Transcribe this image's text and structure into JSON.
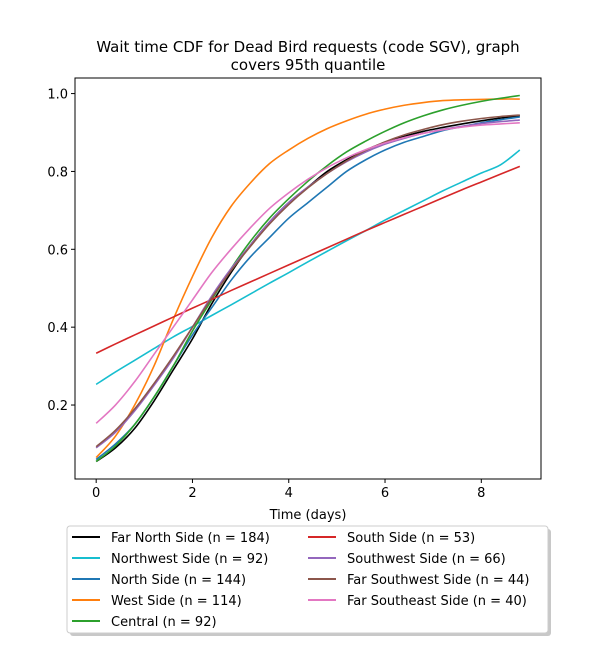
{
  "chart_data": {
    "type": "line",
    "title_lines": [
      "Wait time CDF for Dead Bird  requests (code SGV), graph",
      "covers 95th quantile"
    ],
    "xlabel": "Time (days)",
    "ylabel": "",
    "xlim": [
      -0.44,
      9.24
    ],
    "ylim": [
      0.01,
      1.04
    ],
    "xticks": [
      0,
      2,
      4,
      6,
      8
    ],
    "xtick_labels": [
      "0",
      "2",
      "4",
      "6",
      "8"
    ],
    "yticks": [
      0.2,
      0.4,
      0.6,
      0.8,
      1.0
    ],
    "ytick_labels": [
      "0.2",
      "0.4",
      "0.6",
      "0.8",
      "1.0"
    ],
    "grid": false,
    "legend_position": "below",
    "x": [
      0,
      0.4,
      0.8,
      1.2,
      1.6,
      2.0,
      2.4,
      2.8,
      3.2,
      3.6,
      4.0,
      4.4,
      4.8,
      5.2,
      5.6,
      6.0,
      6.4,
      6.8,
      7.2,
      7.6,
      8.0,
      8.4,
      8.8
    ],
    "series": [
      {
        "name": "Far North Side (n = 184)",
        "color": "#000000",
        "values": [
          0.055,
          0.09,
          0.14,
          0.21,
          0.29,
          0.37,
          0.46,
          0.54,
          0.61,
          0.67,
          0.72,
          0.76,
          0.8,
          0.83,
          0.855,
          0.875,
          0.89,
          0.903,
          0.913,
          0.922,
          0.93,
          0.937,
          0.943
        ]
      },
      {
        "name": "Northwest Side (n = 92)",
        "color": "#17becf",
        "values": [
          0.253,
          0.285,
          0.315,
          0.345,
          0.375,
          0.402,
          0.43,
          0.457,
          0.485,
          0.513,
          0.54,
          0.568,
          0.595,
          0.622,
          0.648,
          0.675,
          0.7,
          0.725,
          0.75,
          0.773,
          0.796,
          0.817,
          0.855
        ]
      },
      {
        "name": "North Side (n = 144)",
        "color": "#1f77b4",
        "values": [
          0.06,
          0.1,
          0.15,
          0.22,
          0.3,
          0.38,
          0.45,
          0.52,
          0.58,
          0.63,
          0.68,
          0.72,
          0.76,
          0.8,
          0.83,
          0.855,
          0.875,
          0.89,
          0.905,
          0.915,
          0.925,
          0.933,
          0.94
        ]
      },
      {
        "name": "West Side (n = 114)",
        "color": "#ff7f0e",
        "values": [
          0.065,
          0.12,
          0.2,
          0.3,
          0.42,
          0.53,
          0.63,
          0.71,
          0.77,
          0.82,
          0.855,
          0.885,
          0.91,
          0.93,
          0.947,
          0.96,
          0.97,
          0.977,
          0.982,
          0.984,
          0.985,
          0.986,
          0.986
        ]
      },
      {
        "name": "Central (n = 92)",
        "color": "#2ca02c",
        "values": [
          0.055,
          0.095,
          0.15,
          0.22,
          0.3,
          0.39,
          0.47,
          0.55,
          0.62,
          0.68,
          0.73,
          0.775,
          0.815,
          0.85,
          0.878,
          0.903,
          0.925,
          0.943,
          0.958,
          0.97,
          0.98,
          0.988,
          0.995
        ]
      },
      {
        "name": "South Side (n = 53)",
        "color": "#d62728",
        "values": [
          0.333,
          0.357,
          0.38,
          0.403,
          0.426,
          0.449,
          0.471,
          0.494,
          0.516,
          0.538,
          0.56,
          0.582,
          0.604,
          0.626,
          0.648,
          0.669,
          0.69,
          0.711,
          0.732,
          0.753,
          0.773,
          0.793,
          0.813
        ]
      },
      {
        "name": "Southwest Side (n = 66)",
        "color": "#9467bd",
        "values": [
          0.09,
          0.13,
          0.185,
          0.25,
          0.32,
          0.4,
          0.48,
          0.55,
          0.61,
          0.67,
          0.72,
          0.76,
          0.795,
          0.825,
          0.85,
          0.87,
          0.885,
          0.898,
          0.908,
          0.916,
          0.923,
          0.928,
          0.932
        ]
      },
      {
        "name": "Far Southwest Side (n = 44)",
        "color": "#8c564b",
        "values": [
          0.093,
          0.135,
          0.19,
          0.255,
          0.325,
          0.4,
          0.475,
          0.545,
          0.607,
          0.665,
          0.715,
          0.758,
          0.795,
          0.827,
          0.854,
          0.876,
          0.894,
          0.908,
          0.92,
          0.929,
          0.936,
          0.941,
          0.945
        ]
      },
      {
        "name": "Far Southeast Side (n = 40)",
        "color": "#e377c2",
        "values": [
          0.153,
          0.2,
          0.26,
          0.33,
          0.4,
          0.47,
          0.54,
          0.6,
          0.655,
          0.705,
          0.745,
          0.78,
          0.81,
          0.835,
          0.856,
          0.873,
          0.887,
          0.898,
          0.907,
          0.914,
          0.919,
          0.922,
          0.925
        ]
      }
    ]
  }
}
